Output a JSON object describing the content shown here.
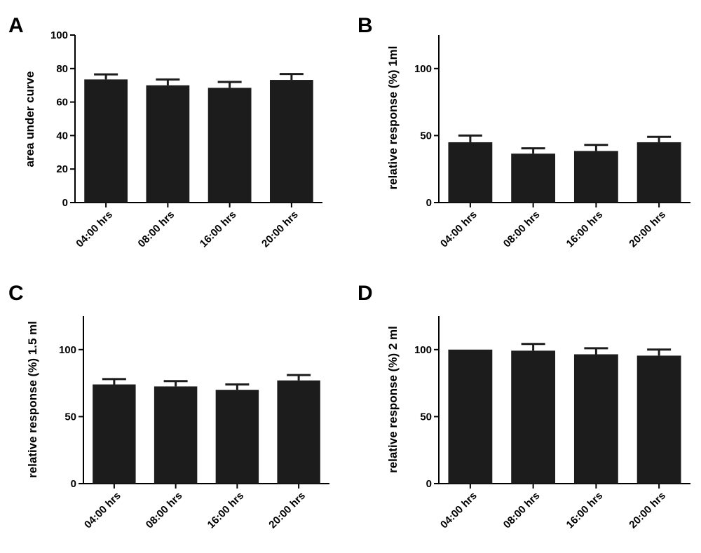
{
  "colors": {
    "bar": "#1c1c1c",
    "axis": "#000000",
    "background": "#ffffff"
  },
  "chart_data": [
    {
      "panel": "A",
      "type": "bar",
      "categories": [
        "04:00 hrs",
        "08:00 hrs",
        "16:00 hrs",
        "20:00 hrs"
      ],
      "values": [
        73.5,
        70,
        68.5,
        73.2
      ],
      "errors": [
        3,
        3.5,
        3.5,
        3.5
      ],
      "xlabel": "",
      "ylabel": "area under curve",
      "ylim": [
        0,
        100
      ],
      "yticks": [
        0,
        20,
        40,
        60,
        80,
        100
      ],
      "grid": false
    },
    {
      "panel": "B",
      "type": "bar",
      "categories": [
        "04:00 hrs",
        "08:00 hrs",
        "16:00 hrs",
        "20:00 hrs"
      ],
      "values": [
        45,
        36.5,
        38.5,
        45
      ],
      "errors": [
        5,
        4,
        4.5,
        4
      ],
      "xlabel": "",
      "ylabel": "relative response (%) 1ml",
      "ylim": [
        0,
        125
      ],
      "yticks": [
        0,
        50,
        100
      ],
      "grid": false
    },
    {
      "panel": "C",
      "type": "bar",
      "categories": [
        "04:00 hrs",
        "08:00 hrs",
        "16:00 hrs",
        "20:00 hrs"
      ],
      "values": [
        74,
        72.5,
        70,
        77
      ],
      "errors": [
        4,
        4,
        4,
        4
      ],
      "xlabel": "",
      "ylabel": "relative response (%) 1.5 ml",
      "ylim": [
        0,
        125
      ],
      "yticks": [
        0,
        50,
        100
      ],
      "grid": false
    },
    {
      "panel": "D",
      "type": "bar",
      "categories": [
        "04:00 hrs",
        "08:00 hrs",
        "16:00 hrs",
        "20:00 hrs"
      ],
      "values": [
        100,
        99.2,
        96.5,
        95.5
      ],
      "errors": [
        0,
        5,
        4.5,
        4.5
      ],
      "xlabel": "",
      "ylabel": "relative response (%) 2 ml",
      "ylim": [
        0,
        125
      ],
      "yticks": [
        0,
        50,
        100
      ],
      "grid": false
    }
  ]
}
